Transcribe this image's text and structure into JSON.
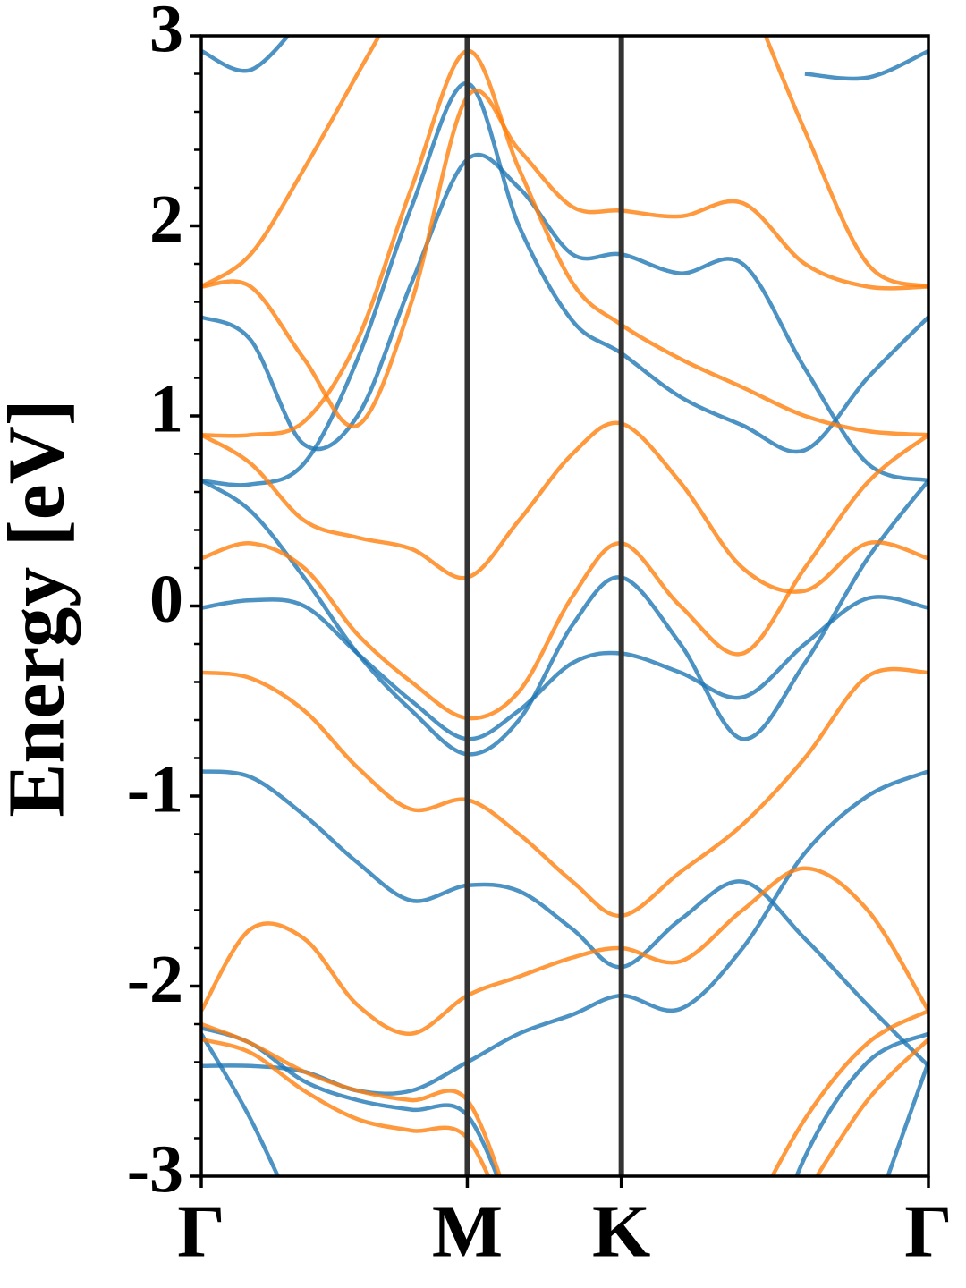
{
  "chart_data": {
    "type": "line",
    "ylabel": "Energy [eV]",
    "x": [
      0,
      0.107,
      0.223,
      0.339,
      0.456,
      0.577,
      0.689,
      0.805,
      0.911,
      1.039,
      1.174,
      1.309,
      1.445,
      1.577
    ],
    "xlim": [
      0,
      1.577
    ],
    "xticks": [
      {
        "value": 0,
        "label": "Γ"
      },
      {
        "value": 0.577,
        "label": "M"
      },
      {
        "value": 0.911,
        "label": "K"
      },
      {
        "value": 1.577,
        "label": "Γ"
      }
    ],
    "ylim": [
      -3,
      3
    ],
    "yticks": [
      -3,
      -2,
      -1,
      0,
      1,
      2,
      3
    ],
    "yminorticks": [
      -2.8,
      -2.6,
      -2.4,
      -2.2,
      -1.8,
      -1.6,
      -1.4,
      -1.2,
      -0.8,
      -0.6,
      -0.4,
      -0.2,
      0.2,
      0.4,
      0.6,
      0.8,
      1.2,
      1.4,
      1.6,
      1.8,
      2.2,
      2.4,
      2.6,
      2.8
    ],
    "series": [
      {
        "color": "#1f77b4",
        "values": [
          -0.87,
          -0.9,
          -1.1,
          -1.35,
          -1.55,
          -1.47,
          -1.5,
          -1.7,
          -1.9,
          -1.65,
          -1.45,
          -1.75,
          -2.1,
          -2.42
        ]
      },
      {
        "color": "#1f77b4",
        "values": [
          -2.42,
          -2.42,
          -2.45,
          -2.55,
          -2.55,
          -2.4,
          -2.25,
          -2.15,
          -2.05,
          -2.12,
          -1.8,
          -1.3,
          -1.0,
          -0.87
        ]
      },
      {
        "color": "#1f77b4",
        "values": [
          -0.01,
          0.03,
          0.0,
          -0.25,
          -0.5,
          -0.7,
          -0.55,
          -0.3,
          -0.25,
          -0.35,
          -0.48,
          -0.2,
          0.04,
          -0.01
        ]
      },
      {
        "color": "#1f77b4",
        "values": [
          0.66,
          0.5,
          0.15,
          -0.25,
          -0.55,
          -0.78,
          -0.6,
          -0.1,
          0.15,
          -0.2,
          -0.7,
          -0.3,
          0.25,
          0.66
        ]
      },
      {
        "color": "#1f77b4",
        "values": [
          0.66,
          0.64,
          0.75,
          1.3,
          2.1,
          2.75,
          2.0,
          1.5,
          1.33,
          1.1,
          0.95,
          0.82,
          1.2,
          1.52
        ]
      },
      {
        "color": "#1f77b4",
        "values": [
          1.52,
          1.4,
          0.85,
          1.0,
          1.7,
          2.35,
          2.2,
          1.85,
          1.85,
          1.75,
          1.8,
          1.25,
          0.75,
          0.66
        ]
      },
      {
        "color": "#1f77b4",
        "values": [
          2.92,
          2.82,
          3.1,
          null,
          null,
          null,
          null,
          null,
          null,
          null,
          null,
          2.8,
          2.78,
          2.92
        ]
      },
      {
        "color": "#1f77b4",
        "values": [
          -2.22,
          -2.3,
          -2.5,
          -2.6,
          -2.65,
          -2.68,
          -3.3,
          null,
          null,
          null,
          -3.8,
          -2.9,
          -2.4,
          -2.25
        ]
      },
      {
        "color": "#1f77b4",
        "values": [
          -2.25,
          -2.7,
          -3.3,
          null,
          null,
          null,
          null,
          null,
          null,
          null,
          null,
          null,
          -3.3,
          -2.4
        ]
      },
      {
        "color": "#ff7f0e",
        "values": [
          -0.35,
          -0.38,
          -0.55,
          -0.85,
          -1.07,
          -1.02,
          -1.2,
          -1.45,
          -1.63,
          -1.4,
          -1.15,
          -0.8,
          -0.37,
          -0.35
        ]
      },
      {
        "color": "#ff7f0e",
        "values": [
          0.25,
          0.33,
          0.2,
          -0.15,
          -0.4,
          -0.59,
          -0.45,
          0.05,
          0.33,
          0.0,
          -0.25,
          0.2,
          0.65,
          0.9
        ]
      },
      {
        "color": "#ff7f0e",
        "values": [
          0.9,
          0.75,
          0.45,
          0.36,
          0.3,
          0.15,
          0.45,
          0.8,
          0.96,
          0.65,
          0.2,
          0.08,
          0.33,
          0.25
        ]
      },
      {
        "color": "#ff7f0e",
        "values": [
          0.9,
          0.9,
          0.97,
          1.4,
          2.2,
          2.92,
          2.3,
          1.7,
          1.48,
          1.3,
          1.15,
          1.0,
          0.92,
          0.9
        ]
      },
      {
        "color": "#ff7f0e",
        "values": [
          1.68,
          1.68,
          1.3,
          0.95,
          1.6,
          2.68,
          2.4,
          2.1,
          2.08,
          2.05,
          2.12,
          1.8,
          1.68,
          1.68
        ]
      },
      {
        "color": "#ff7f0e",
        "values": [
          1.68,
          1.85,
          2.3,
          2.8,
          3.3,
          null,
          null,
          null,
          null,
          null,
          3.3,
          2.5,
          1.8,
          1.68
        ]
      },
      {
        "color": "#ff7f0e",
        "values": [
          -2.13,
          -1.7,
          -1.75,
          -2.1,
          -2.25,
          -2.05,
          -1.95,
          -1.85,
          -1.8,
          -1.87,
          -1.6,
          -1.38,
          -1.6,
          -2.13
        ]
      },
      {
        "color": "#ff7f0e",
        "values": [
          -2.2,
          -2.3,
          -2.45,
          -2.55,
          -2.6,
          -2.6,
          -3.3,
          null,
          null,
          null,
          -3.3,
          -2.7,
          -2.3,
          -2.13
        ]
      },
      {
        "color": "#ff7f0e",
        "values": [
          -2.28,
          -2.35,
          -2.55,
          -2.7,
          -2.76,
          -2.8,
          -3.4,
          null,
          null,
          null,
          null,
          -3.1,
          -2.6,
          -2.28
        ]
      }
    ]
  }
}
